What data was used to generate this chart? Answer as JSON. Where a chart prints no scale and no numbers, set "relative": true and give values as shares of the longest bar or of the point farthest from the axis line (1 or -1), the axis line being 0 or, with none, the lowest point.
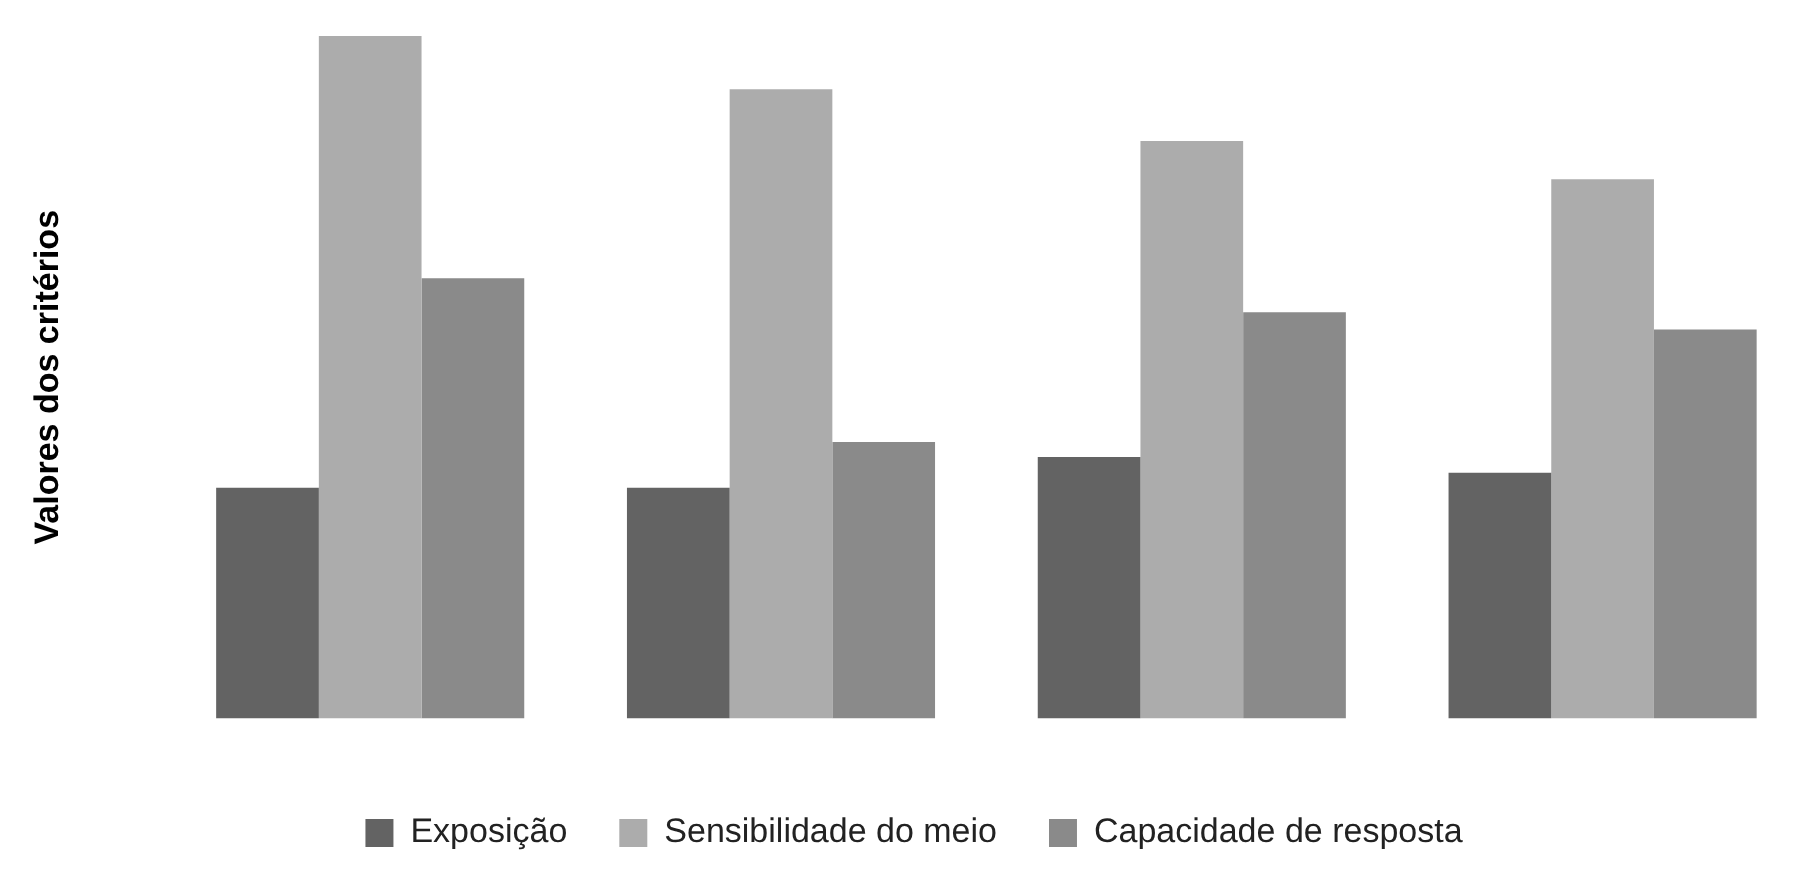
{
  "chart_data": {
    "type": "bar",
    "ylabel": "Valores dos critérios",
    "relative": true,
    "categories": [
      null,
      null,
      null,
      null
    ],
    "legend": "bottom",
    "grid": false,
    "series": [
      {
        "name": "Exposição",
        "color": "#636363",
        "values": [
          0.338,
          0.338,
          0.383,
          0.36
        ]
      },
      {
        "name": "Sensibilidade do meio",
        "color": "#acacac",
        "values": [
          1,
          0.922,
          0.846,
          0.79
        ]
      },
      {
        "name": "Capacidade de resposta",
        "color": "#8a8a8a",
        "values": [
          0.645,
          0.405,
          0.595,
          0.57
        ]
      }
    ]
  }
}
